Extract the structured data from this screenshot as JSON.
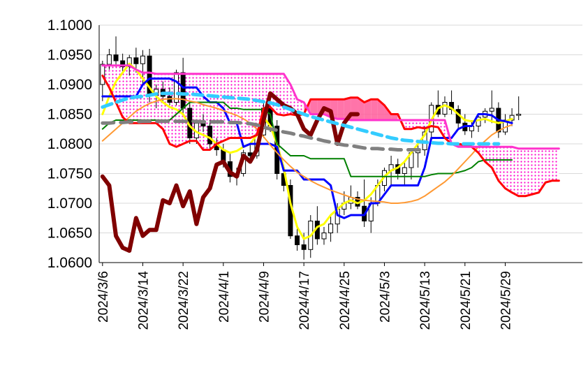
{
  "chart_data": {
    "type": "candlestick",
    "title": "",
    "xlabel": "",
    "ylabel": "",
    "ylim": [
      1.06,
      1.1
    ],
    "grid": true,
    "legend": "none",
    "y_ticks": [
      "1.0600",
      "1.0650",
      "1.0700",
      "1.0750",
      "1.0800",
      "1.0850",
      "1.0900",
      "1.0950",
      "1.1000"
    ],
    "x_ticks": [
      "2024/3/6",
      "2024/3/14",
      "2024/3/22",
      "2024/4/1",
      "2024/4/9",
      "2024/4/17",
      "2024/4/25",
      "2024/5/3",
      "2024/5/13",
      "2024/5/21",
      "2024/5/29"
    ],
    "x_tick_index": [
      0,
      6,
      12,
      18,
      24,
      30,
      36,
      42,
      48,
      54,
      60
    ],
    "x_count": 72,
    "candles": [
      [
        1.09,
        1.094,
        1.0872,
        1.0934
      ],
      [
        1.0934,
        1.096,
        1.0925,
        1.095
      ],
      [
        1.095,
        1.0981,
        1.093,
        1.094
      ],
      [
        1.094,
        1.0952,
        1.0918,
        1.093
      ],
      [
        1.093,
        1.095,
        1.0915,
        1.0945
      ],
      [
        1.0945,
        1.0962,
        1.092,
        1.0935
      ],
      [
        1.0935,
        1.0958,
        1.09,
        1.0948
      ],
      [
        1.0948,
        1.096,
        1.087,
        1.0882
      ],
      [
        1.0882,
        1.09,
        1.086,
        1.0892
      ],
      [
        1.0892,
        1.0905,
        1.087,
        1.088
      ],
      [
        1.088,
        1.0895,
        1.0865,
        1.087
      ],
      [
        1.087,
        1.0925,
        1.0865,
        1.092
      ],
      [
        1.092,
        1.0945,
        1.085,
        1.086
      ],
      [
        1.086,
        1.087,
        1.08,
        1.081
      ],
      [
        1.081,
        1.084,
        1.08,
        1.0835
      ],
      [
        1.0835,
        1.085,
        1.082,
        1.083
      ],
      [
        1.083,
        1.084,
        1.079,
        1.08
      ],
      [
        1.08,
        1.081,
        1.078,
        1.079
      ],
      [
        1.079,
        1.08,
        1.076,
        1.077
      ],
      [
        1.077,
        1.0785,
        1.0735,
        1.0745
      ],
      [
        1.0745,
        1.076,
        1.073,
        1.075
      ],
      [
        1.075,
        1.079,
        1.0745,
        1.0785
      ],
      [
        1.0785,
        1.08,
        1.0775,
        1.078
      ],
      [
        1.078,
        1.082,
        1.0775,
        1.0815
      ],
      [
        1.0815,
        1.087,
        1.081,
        1.086
      ],
      [
        1.086,
        1.0865,
        1.082,
        1.083
      ],
      [
        1.083,
        1.084,
        1.074,
        1.075
      ],
      [
        1.075,
        1.076,
        1.072,
        1.073
      ],
      [
        1.073,
        1.074,
        1.064,
        1.0645
      ],
      [
        1.0645,
        1.066,
        1.062,
        1.063
      ],
      [
        1.063,
        1.065,
        1.0605,
        1.0622
      ],
      [
        1.0622,
        1.068,
        1.0608,
        1.067
      ],
      [
        1.067,
        1.0695,
        1.063,
        1.064
      ],
      [
        1.064,
        1.066,
        1.063,
        1.065
      ],
      [
        1.065,
        1.068,
        1.0635,
        1.0665
      ],
      [
        1.0665,
        1.07,
        1.065,
        1.069
      ],
      [
        1.069,
        1.072,
        1.068,
        1.07
      ],
      [
        1.07,
        1.073,
        1.069,
        1.071
      ],
      [
        1.071,
        1.072,
        1.069,
        1.0695
      ],
      [
        1.0695,
        1.074,
        1.066,
        1.067
      ],
      [
        1.067,
        1.071,
        1.065,
        1.07
      ],
      [
        1.07,
        1.074,
        1.0695,
        1.073
      ],
      [
        1.073,
        1.076,
        1.072,
        1.0755
      ],
      [
        1.0755,
        1.078,
        1.073,
        1.0765
      ],
      [
        1.0765,
        1.0775,
        1.074,
        1.075
      ],
      [
        1.075,
        1.077,
        1.073,
        1.076
      ],
      [
        1.076,
        1.079,
        1.074,
        1.0785
      ],
      [
        1.0785,
        1.08,
        1.076,
        1.079
      ],
      [
        1.079,
        1.083,
        1.078,
        1.082
      ],
      [
        1.082,
        1.087,
        1.081,
        1.0865
      ],
      [
        1.0865,
        1.089,
        1.0845,
        1.085
      ],
      [
        1.085,
        1.088,
        1.0845,
        1.087
      ],
      [
        1.087,
        1.089,
        1.085,
        1.0858
      ],
      [
        1.0858,
        1.0865,
        1.0825,
        1.0835
      ],
      [
        1.0835,
        1.085,
        1.0815,
        1.0822
      ],
      [
        1.0822,
        1.084,
        1.081,
        1.083
      ],
      [
        1.083,
        1.085,
        1.082,
        1.0845
      ],
      [
        1.0845,
        1.086,
        1.0835,
        1.0855
      ],
      [
        1.0855,
        1.089,
        1.0835,
        1.086
      ],
      [
        1.086,
        1.087,
        1.081,
        1.082
      ],
      [
        1.082,
        1.085,
        1.0815,
        1.084
      ],
      [
        1.084,
        1.086,
        1.083,
        1.0848
      ],
      [
        1.0848,
        1.088,
        1.084,
        1.085
      ]
    ],
    "series": [
      {
        "color": "#ffff00",
        "width": 3,
        "values": [
          1.085,
          1.088,
          1.0905,
          1.092,
          1.0935,
          1.0925,
          1.091,
          1.0895,
          1.088,
          1.087,
          1.0862,
          1.0858,
          1.085,
          1.083,
          1.082,
          1.0815,
          1.081,
          1.08,
          1.079,
          1.0785,
          1.0788,
          1.0795,
          1.08,
          1.0815,
          1.0845,
          1.083,
          1.08,
          1.076,
          1.07,
          1.066,
          1.064,
          1.0645,
          1.066,
          1.0665,
          1.068,
          1.069,
          1.07,
          1.0705,
          1.07,
          1.0705,
          1.0715,
          1.073,
          1.0745,
          1.0755,
          1.076,
          1.077,
          1.0785,
          1.08,
          1.0815,
          1.084,
          1.086,
          1.0865,
          1.086,
          1.085,
          1.084,
          1.0838,
          1.084,
          1.0842,
          1.0838,
          1.0835,
          1.0838,
          1.0842
        ]
      },
      {
        "color": "#0000ff",
        "width": 3,
        "values": [
          1.088,
          1.088,
          1.088,
          1.088,
          1.088,
          1.088,
          1.09,
          1.091,
          1.091,
          1.091,
          1.091,
          1.0905,
          1.0895,
          1.0895,
          1.0895,
          1.088,
          1.087,
          1.087,
          1.086,
          1.0835,
          1.0835,
          1.0795,
          1.08,
          1.08,
          1.08,
          1.08,
          1.0795,
          1.0755,
          1.0755,
          1.0755,
          1.074,
          1.074,
          1.074,
          1.074,
          1.073,
          1.068,
          1.0675,
          1.068,
          1.068,
          1.068,
          1.07,
          1.07,
          1.0715,
          1.073,
          1.073,
          1.073,
          1.073,
          1.073,
          1.076,
          1.081,
          1.081,
          1.081,
          1.081,
          1.0825,
          1.083,
          1.083,
          1.085,
          1.085,
          1.0848,
          1.084,
          1.0838,
          1.0835
        ]
      },
      {
        "color": "#008000",
        "width": 2,
        "values": [
          1.0825,
          1.0835,
          1.084,
          1.084,
          1.084,
          1.084,
          1.084,
          1.084,
          1.084,
          1.084,
          1.084,
          1.085,
          1.086,
          1.087,
          1.087,
          1.087,
          1.087,
          1.087,
          1.087,
          1.086,
          1.086,
          1.0858,
          1.0858,
          1.0858,
          1.0858,
          1.085,
          1.08,
          1.079,
          1.078,
          1.078,
          1.078,
          1.0775,
          1.0775,
          1.0775,
          1.0775,
          1.0775,
          1.0775,
          1.0745,
          1.0745,
          1.0745,
          1.0745,
          1.0745,
          1.0745,
          1.0745,
          1.0745,
          1.0745,
          1.0745,
          1.0745,
          1.0745,
          1.0748,
          1.075,
          1.075,
          1.075,
          1.0752,
          1.0755,
          1.076,
          1.077,
          1.0773,
          1.0773,
          1.0773,
          1.0773,
          1.0773
        ]
      },
      {
        "color": "#ff9933",
        "width": 2,
        "values": [
          1.0805,
          1.0815,
          1.0825,
          1.0835,
          1.0845,
          1.0855,
          1.0862,
          1.0868,
          1.0872,
          1.0875,
          1.0876,
          1.0876,
          1.0875,
          1.0872,
          1.087,
          1.0866,
          1.0863,
          1.086,
          1.0856,
          1.0852,
          1.0848,
          1.0842,
          1.0835,
          1.0825,
          1.0812,
          1.0798,
          1.0785,
          1.0773,
          1.0762,
          1.0752,
          1.0745,
          1.0738,
          1.0732,
          1.0727,
          1.0722,
          1.0718,
          1.0714,
          1.071,
          1.0707,
          1.0705,
          1.0704,
          1.0703,
          1.0702,
          1.07,
          1.07,
          1.0701,
          1.0703,
          1.0706,
          1.0712,
          1.072,
          1.0728,
          1.0736,
          1.0746,
          1.0758,
          1.077,
          1.0782,
          1.0795,
          1.0805,
          1.0815,
          1.0822,
          1.0828,
          1.0832
        ]
      },
      {
        "color": "#ff0000",
        "width": 3,
        "values": [
          1.0915,
          1.0895,
          1.087,
          1.0845,
          1.0835,
          1.0835,
          1.0835,
          1.0835,
          1.0835,
          1.0825,
          1.08,
          1.0795,
          1.08,
          1.0805,
          1.0805,
          1.079,
          1.079,
          1.08,
          1.0805,
          1.081,
          1.081,
          1.081,
          1.081,
          1.0815,
          1.086,
          1.0862,
          1.085,
          1.0848,
          1.085,
          1.0848,
          1.085,
          1.0875,
          1.0875,
          1.0875,
          1.0875,
          1.0875,
          1.0875,
          1.0878,
          1.0878,
          1.087,
          1.0875,
          1.0875,
          1.0865,
          1.085,
          1.085,
          1.0825,
          1.0825,
          1.0828,
          1.0826,
          1.083,
          1.0828,
          1.081,
          1.08,
          1.08,
          1.0798,
          1.0795,
          1.0785,
          1.077,
          1.076,
          1.0738,
          1.0725,
          1.0718,
          1.0712,
          1.0712,
          1.0715,
          1.0718,
          1.0735,
          1.0738,
          1.0738
        ]
      },
      {
        "color": "#ff33cc",
        "width": 3,
        "values": [
          1.0932,
          1.0932,
          1.0932,
          1.0932,
          1.0932,
          1.0925,
          1.092,
          1.092,
          1.0918,
          1.0918,
          1.0918,
          1.0918,
          1.0918,
          1.0918,
          1.0918,
          1.0918,
          1.0918,
          1.0918,
          1.0918,
          1.0918,
          1.0918,
          1.0918,
          1.0918,
          1.0918,
          1.0918,
          1.0918,
          1.0918,
          1.0918,
          1.09,
          1.0875,
          1.087,
          1.085,
          1.085,
          1.085,
          1.0845,
          1.0842,
          1.0842,
          1.084,
          1.084,
          1.084,
          1.084,
          1.084,
          1.084,
          1.084,
          1.084,
          1.084,
          1.084,
          1.084,
          1.084,
          1.084,
          1.084,
          1.084,
          1.08,
          1.0795,
          1.0795,
          1.0795,
          1.0795,
          1.0795,
          1.0795,
          1.0795,
          1.0795,
          1.0795,
          1.0792,
          1.0792,
          1.0792,
          1.0792,
          1.0792,
          1.0792,
          1.0792
        ]
      },
      {
        "color": "#800000",
        "width": 6,
        "values": [
          1.0745,
          1.073,
          1.0645,
          1.0625,
          1.062,
          1.0675,
          1.0645,
          1.0655,
          1.0655,
          1.0705,
          1.07,
          1.073,
          1.0695,
          1.072,
          1.0665,
          1.071,
          1.0725,
          1.0765,
          1.077,
          1.0752,
          1.0745,
          1.078,
          1.077,
          1.079,
          1.084,
          1.0885,
          1.0875,
          1.0865,
          1.086,
          1.085,
          1.0825,
          1.0815,
          1.084,
          1.086,
          1.0855,
          1.08,
          1.0835,
          1.085,
          1.085
        ]
      },
      {
        "color": "#808080",
        "width": 5,
        "dash": "16,10",
        "values": [
          1.0835,
          1.0835,
          1.0836,
          1.0836,
          1.0837,
          1.0837,
          1.0838,
          1.0838,
          1.0838,
          1.0838,
          1.0838,
          1.0838,
          1.0838,
          1.0838,
          1.0838,
          1.0837,
          1.0837,
          1.0837,
          1.0837,
          1.0836,
          1.0836,
          1.0835,
          1.0834,
          1.0832,
          1.0828,
          1.0825,
          1.0823,
          1.082,
          1.0818,
          1.0815,
          1.0813,
          1.081,
          1.0808,
          1.0805,
          1.0803,
          1.08,
          1.0798,
          1.0797,
          1.0795,
          1.0793,
          1.0792,
          1.0792,
          1.0791,
          1.0791,
          1.079,
          1.079,
          1.079,
          1.079,
          1.079
        ]
      },
      {
        "color": "#33ccff",
        "width": 5,
        "dash": "14,8",
        "values": [
          1.0862,
          1.0866,
          1.087,
          1.0874,
          1.0877,
          1.0879,
          1.088,
          1.0882,
          1.0884,
          1.0885,
          1.0885,
          1.0885,
          1.0884,
          1.0884,
          1.0883,
          1.0882,
          1.0881,
          1.088,
          1.0879,
          1.0878,
          1.0877,
          1.0876,
          1.0875,
          1.0873,
          1.0871,
          1.0869,
          1.0866,
          1.0862,
          1.0858,
          1.0854,
          1.085,
          1.0846,
          1.0843,
          1.084,
          1.0837,
          1.0834,
          1.0831,
          1.0828,
          1.0825,
          1.0822,
          1.0819,
          1.0816,
          1.0813,
          1.081,
          1.0808,
          1.0806,
          1.0805,
          1.0804,
          1.0803,
          1.0802,
          1.0801,
          1.0801,
          1.08,
          1.08,
          1.08,
          1.08,
          1.08,
          1.08,
          1.08,
          1.08
        ]
      }
    ],
    "cloud": {
      "span_a_series": 4,
      "span_b_series": 5,
      "color_a_above": "#ff5c9a",
      "color_b_above": "#ff00cc"
    }
  }
}
